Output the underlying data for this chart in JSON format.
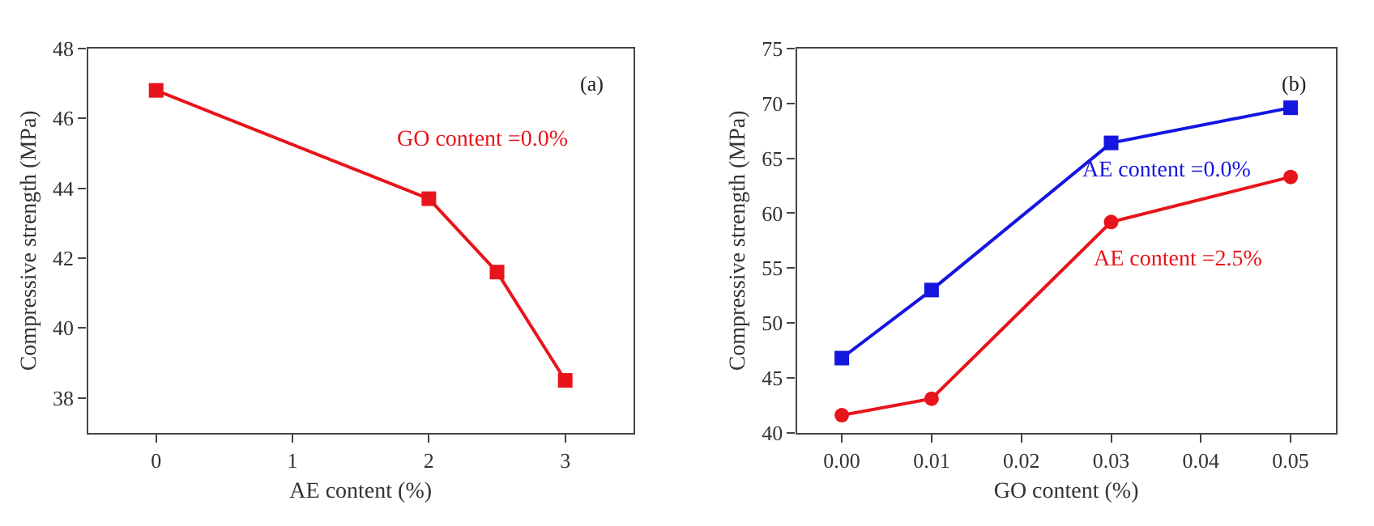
{
  "chart_data": [
    {
      "type": "line",
      "x": [
        0,
        2,
        2.5,
        3
      ],
      "xlabel": "AE content (%)",
      "ylabel": "Compressive strength (MPa)",
      "xlim": [
        -0.5,
        3.5
      ],
      "xticks": [
        0,
        1,
        2,
        3
      ],
      "ylim": [
        37,
        48
      ],
      "yticks": [
        38,
        40,
        42,
        44,
        46,
        48
      ],
      "annotations": [
        "(a)"
      ],
      "legend": false,
      "line_style": "solid",
      "series": [
        {
          "name": "GO content =0.0%",
          "color": "#e8141b",
          "marker": "square",
          "values": [
            46.8,
            43.7,
            41.6,
            38.5
          ]
        }
      ]
    },
    {
      "type": "line",
      "x": [
        0,
        0.01,
        0.03,
        0.05
      ],
      "xlabel": "GO content (%)",
      "ylabel": "Compressive strength (MPa)",
      "xlim": [
        -0.005,
        0.055
      ],
      "xticks": [
        {
          "value": 0,
          "label": "0.00"
        },
        0.01,
        0.02,
        0.03,
        0.04,
        0.05
      ],
      "ylim": [
        40,
        75
      ],
      "yticks": [
        40,
        45,
        50,
        55,
        60,
        65,
        70,
        75
      ],
      "annotations": [
        "(b)"
      ],
      "legend": false,
      "line_style": "solid",
      "series": [
        {
          "name": "AE content =0.0%",
          "color": "#1515e0",
          "marker": "square",
          "values": [
            46.8,
            53.0,
            66.4,
            69.6
          ]
        },
        {
          "name": "AE content =2.5%",
          "color": "#e8141b",
          "marker": "circle",
          "values": [
            41.6,
            43.1,
            59.2,
            63.3
          ]
        }
      ]
    }
  ]
}
